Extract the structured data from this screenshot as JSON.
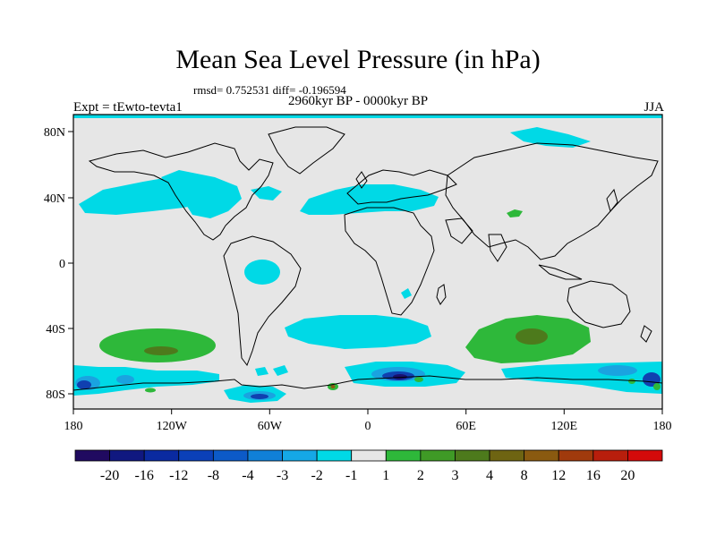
{
  "title": "Mean Sea Level Pressure (in hPa)",
  "stats": "rmsd= 0.752531 diff= -0.196594",
  "period": "2960kyr BP - 0000kyr BP",
  "experiment": "Expt = tEwto-tevta1",
  "season": "JJA",
  "colors": {
    "background": "#e6e6e6",
    "neg_light": "#00d9e6",
    "pos_green": "#2eb83a",
    "pos_olive": "#4d7a1c",
    "pos_brown": "#8a5a10",
    "neg_mid": "#1aa3e0",
    "neg_blue": "#1040b0",
    "neg_dark": "#1a1070"
  },
  "map": {
    "lon_labels": [
      "180",
      "120W",
      "60W",
      "0",
      "60E",
      "120E",
      "180"
    ],
    "lat_labels": [
      "80N",
      "40N",
      "0",
      "40S",
      "80S"
    ]
  },
  "colorbar": {
    "labels": [
      "-20",
      "-16",
      "-12",
      "-8",
      "-4",
      "-3",
      "-2",
      "-1",
      "1",
      "2",
      "3",
      "4",
      "8",
      "12",
      "16",
      "20"
    ],
    "colors": [
      "#200a60",
      "#101880",
      "#0a2aa0",
      "#0b40b8",
      "#0c5ac8",
      "#1080d8",
      "#15a8e6",
      "#00d9e6",
      "#e6e6e6",
      "#2eb83a",
      "#3f9a26",
      "#4d7a1c",
      "#6e6412",
      "#8a5a10",
      "#a03a0c",
      "#b81e0c",
      "#d40a0a"
    ]
  }
}
